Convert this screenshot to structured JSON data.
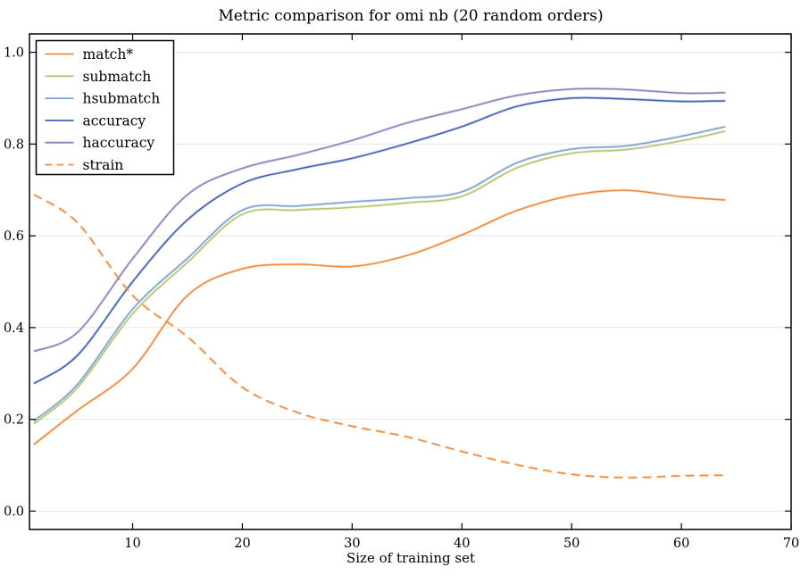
{
  "figure": {
    "title": "Metric comparison for omi nb (20 random orders)",
    "xlabel": "Size of training set"
  },
  "chart_data": {
    "type": "line",
    "title": "Metric comparison for omi nb (20 random orders)",
    "xlabel": "Size of training set",
    "ylabel": "",
    "grid": "horizontal",
    "legend_position": "upper-left",
    "xlim": [
      0.6,
      70
    ],
    "ylim": [
      -0.04,
      1.04
    ],
    "xticks": [
      10,
      20,
      30,
      40,
      50,
      60,
      70
    ],
    "xtick_labels": [
      "10",
      "20",
      "30",
      "40",
      "50",
      "60",
      "70"
    ],
    "yticks": [
      0.0,
      0.2,
      0.4,
      0.6,
      0.8,
      1.0
    ],
    "ytick_labels": [
      "0.0",
      "0.2",
      "0.4",
      "0.6",
      "0.8",
      "1.0"
    ],
    "x": [
      1,
      5,
      10,
      15,
      20,
      25,
      30,
      35,
      40,
      45,
      50,
      55,
      60,
      64
    ],
    "series": [
      {
        "name": "match*",
        "color": "#ef8a3d",
        "style": "solid",
        "values": [
          0.145,
          0.22,
          0.31,
          0.47,
          0.528,
          0.538,
          0.533,
          0.557,
          0.602,
          0.655,
          0.688,
          0.699,
          0.685,
          0.678
        ]
      },
      {
        "name": "submatch",
        "color": "#b5c573",
        "style": "solid",
        "values": [
          0.19,
          0.27,
          0.43,
          0.542,
          0.647,
          0.656,
          0.662,
          0.672,
          0.686,
          0.748,
          0.78,
          0.788,
          0.807,
          0.828
        ]
      },
      {
        "name": "hsubmatch",
        "color": "#7ba4d1",
        "style": "solid",
        "values": [
          0.196,
          0.277,
          0.44,
          0.551,
          0.656,
          0.665,
          0.674,
          0.682,
          0.696,
          0.759,
          0.789,
          0.796,
          0.817,
          0.838
        ]
      },
      {
        "name": "accuracy",
        "color": "#4361b2",
        "style": "solid",
        "values": [
          0.278,
          0.34,
          0.5,
          0.635,
          0.714,
          0.745,
          0.769,
          0.801,
          0.838,
          0.882,
          0.9,
          0.898,
          0.893,
          0.894
        ]
      },
      {
        "name": "haccuracy",
        "color": "#8b80bc",
        "style": "solid",
        "values": [
          0.348,
          0.39,
          0.55,
          0.69,
          0.747,
          0.776,
          0.808,
          0.846,
          0.876,
          0.906,
          0.92,
          0.919,
          0.911,
          0.912
        ]
      },
      {
        "name": "strain",
        "color": "#ef8a3d",
        "style": "dashed",
        "values": [
          0.69,
          0.628,
          0.47,
          0.38,
          0.27,
          0.215,
          0.185,
          0.162,
          0.13,
          0.101,
          0.08,
          0.073,
          0.077,
          0.078
        ]
      }
    ],
    "colors": {
      "grid": "#e7e7e7",
      "spine": "#000000",
      "text": "#000000",
      "background": "#ffffff"
    }
  }
}
